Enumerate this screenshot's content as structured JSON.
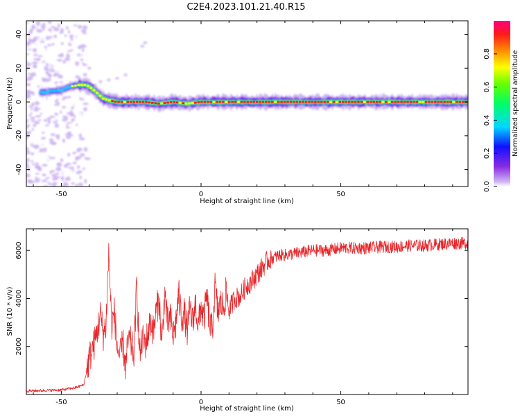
{
  "figure_title": "C2E4.2023.101.21.40.R15",
  "colors": {
    "line": "#e8262a",
    "frame": "#000000"
  },
  "chart_data": [
    {
      "type": "heatmap",
      "xlabel": "Height of straight line (km)",
      "ylabel": "Frequency (Hz)",
      "xlim": [
        -62.5,
        95.5
      ],
      "ylim": [
        -50,
        48
      ],
      "xticks": [
        -50,
        0,
        50
      ],
      "yticks": [
        -40,
        -20,
        0,
        20,
        40
      ],
      "ridge": {
        "x": [
          -62,
          -55,
          -50,
          -47,
          -44,
          -41,
          -39,
          -37,
          -35,
          -33,
          -30,
          -25,
          -20,
          -15,
          -10,
          -5,
          0,
          10,
          20,
          30,
          40,
          50,
          60,
          70,
          80,
          90,
          95
        ],
        "freq": [
          5,
          6,
          7,
          9,
          10,
          10,
          8,
          5,
          2,
          1,
          0,
          0,
          0,
          -1,
          0,
          -1,
          0,
          0,
          0,
          0,
          0,
          0,
          0,
          0,
          0,
          0,
          0
        ]
      },
      "colorbar": {
        "label": "Normalized spectral amplitude",
        "range": [
          0,
          1
        ],
        "ticks": [
          "0.0",
          "0.2",
          "0.4",
          "0.6",
          "0.8"
        ],
        "colormap": [
          "#ffffff",
          "#cdb3f2",
          "#8a2be2",
          "#1010ff",
          "#00d8ff",
          "#00ff66",
          "#66ff00",
          "#ffff00",
          "#ff8c00",
          "#ff1a1a",
          "#ff0080"
        ]
      }
    },
    {
      "type": "line",
      "xlabel": "Height of straight line (km)",
      "ylabel": "SNR (10 * v/v)",
      "xlim": [
        -62.5,
        95.5
      ],
      "ylim": [
        0,
        6900
      ],
      "xticks": [
        -50,
        0,
        50
      ],
      "yticks": [
        2000,
        4000,
        6000
      ],
      "series": [
        {
          "x": [
            -62,
            -55,
            -50,
            -45,
            -42,
            -41,
            -40,
            -38,
            -36,
            -35,
            -34,
            -33,
            -32,
            -31,
            -30,
            -29,
            -28,
            -27,
            -26,
            -25,
            -24,
            -23,
            -22,
            -21,
            -20,
            -19,
            -18,
            -17,
            -16,
            -15,
            -14,
            -13,
            -12,
            -11,
            -10,
            -9,
            -8,
            -7,
            -6,
            -5,
            -4,
            -3,
            -2,
            -1,
            0,
            1,
            2,
            3,
            4,
            5,
            6,
            7,
            8,
            9,
            10,
            12,
            14,
            16,
            18,
            20,
            22,
            24,
            26,
            28,
            30,
            35,
            40,
            45,
            50,
            55,
            60,
            65,
            70,
            75,
            80,
            85,
            90,
            95
          ],
          "values": [
            150,
            170,
            190,
            280,
            400,
            900,
            1500,
            2200,
            3300,
            2500,
            2900,
            6000,
            2900,
            3400,
            2000,
            1500,
            2200,
            1100,
            2300,
            2100,
            1700,
            4600,
            1600,
            2300,
            2100,
            2500,
            3100,
            2600,
            3500,
            4000,
            2000,
            4300,
            2900,
            3200,
            2400,
            3000,
            4200,
            3200,
            3400,
            2600,
            3600,
            3000,
            3800,
            2800,
            3700,
            3100,
            4100,
            3000,
            2600,
            4500,
            3400,
            3800,
            3600,
            4300,
            3500,
            4000,
            4100,
            4500,
            4700,
            5000,
            5300,
            5600,
            5700,
            5800,
            5800,
            5900,
            6000,
            6000,
            6100,
            6100,
            6100,
            6150,
            6150,
            6200,
            6200,
            6250,
            6300,
            6300
          ]
        }
      ]
    }
  ]
}
